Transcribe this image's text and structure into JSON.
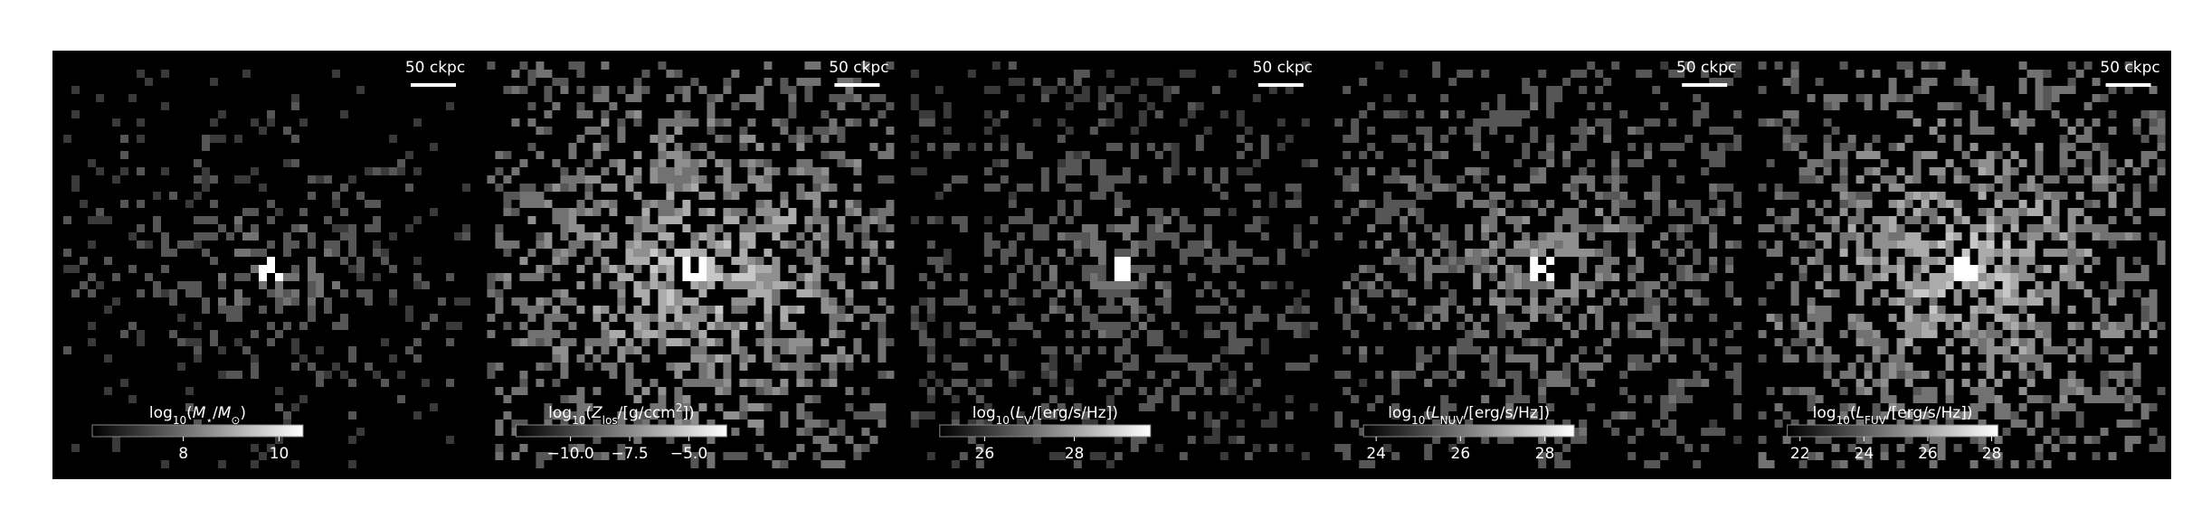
{
  "panels": [
    {
      "scale_bar": "50 ckpc",
      "colorbar": {
        "label": [
          {
            "text": "log"
          },
          {
            "text": "10",
            "sub": true
          },
          {
            "text": "("
          },
          {
            "text": "M",
            "italic": true
          },
          {
            "text": "⋆",
            "sub": true
          },
          {
            "text": "/"
          },
          {
            "text": "M",
            "italic": true
          },
          {
            "text": "⊙",
            "sub": true
          },
          {
            "text": ")"
          }
        ],
        "lim": [
          6.1,
          10.5
        ],
        "ticks": [
          8,
          10
        ]
      }
    },
    {
      "scale_bar": "50 ckpc",
      "colorbar": {
        "label": [
          {
            "text": "log"
          },
          {
            "text": "10",
            "sub": true
          },
          {
            "text": "("
          },
          {
            "text": "Z",
            "italic": true
          },
          {
            "text": "los",
            "sub": true
          },
          {
            "text": "/[g/ccm"
          },
          {
            "text": "2",
            "sup": true
          },
          {
            "text": "])"
          }
        ],
        "lim": [
          -12.3,
          -3.4
        ],
        "ticks": [
          {
            "value": -10,
            "label": "−10.0"
          },
          {
            "value": -7.5,
            "label": "−7.5"
          },
          {
            "value": -5,
            "label": "−5.0"
          }
        ]
      }
    },
    {
      "scale_bar": "50 ckpc",
      "colorbar": {
        "label": [
          {
            "text": "log"
          },
          {
            "text": "10",
            "sub": true
          },
          {
            "text": "("
          },
          {
            "text": "L",
            "italic": true
          },
          {
            "text": "V",
            "sub": true
          },
          {
            "text": "/[erg/s/Hz])"
          }
        ],
        "lim": [
          25,
          29.7
        ],
        "ticks": [
          26,
          28
        ]
      }
    },
    {
      "scale_bar": "50 ckpc",
      "colorbar": {
        "label": [
          {
            "text": "log"
          },
          {
            "text": "10",
            "sub": true
          },
          {
            "text": "("
          },
          {
            "text": "L",
            "italic": true
          },
          {
            "text": "NUV",
            "sub": true
          },
          {
            "text": "/[erg/s/Hz])"
          }
        ],
        "lim": [
          23.7,
          28.7
        ],
        "ticks": [
          24,
          26,
          28
        ]
      }
    },
    {
      "scale_bar": "50 ckpc",
      "colorbar": {
        "label": [
          {
            "text": "log"
          },
          {
            "text": "10",
            "sub": true
          },
          {
            "text": "("
          },
          {
            "text": "L",
            "italic": true
          },
          {
            "text": "FUV",
            "sub": true
          },
          {
            "text": "/[erg/s/Hz])"
          }
        ],
        "lim": [
          21.6,
          28.2
        ],
        "ticks": [
          22,
          24,
          26,
          28
        ]
      }
    }
  ]
}
